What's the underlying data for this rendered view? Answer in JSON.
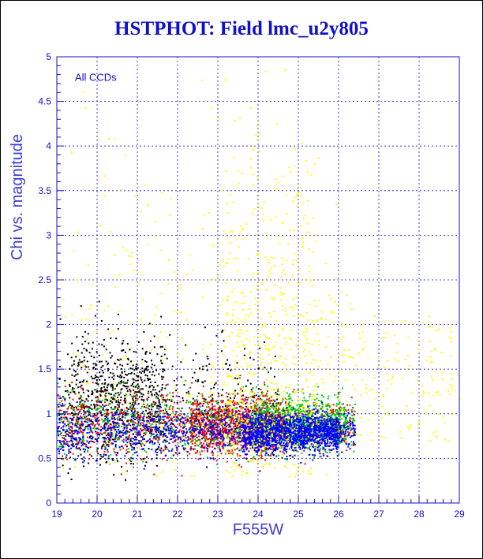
{
  "chart_data": {
    "type": "scatter",
    "title": "HSTPHOT: Field lmc_u2y805",
    "xlabel": "F555W",
    "ylabel": "Chi vs. magnitude",
    "annotation": "All CCDs",
    "xlim": [
      19,
      29
    ],
    "ylim": [
      0,
      5
    ],
    "x_ticks": [
      19,
      20,
      21,
      22,
      23,
      24,
      25,
      26,
      27,
      28,
      29
    ],
    "y_ticks": [
      0,
      0.5,
      1,
      1.5,
      2,
      2.5,
      3,
      3.5,
      4,
      4.5,
      5
    ],
    "grid": true,
    "legend": "none",
    "series": [
      {
        "color": "#000000",
        "x_range": [
          19,
          24.5
        ],
        "peak_x": 20.5,
        "y_center": 1.15,
        "y_spread": 0.3,
        "approx_count": 1100
      },
      {
        "color": "#ff0000",
        "x_range": [
          19,
          26.4
        ],
        "peak_x": 23.5,
        "y_center": 0.88,
        "y_spread": 0.16,
        "approx_count": 1800
      },
      {
        "color": "#00cc00",
        "x_range": [
          19,
          26.4
        ],
        "peak_x": 25.0,
        "y_center": 0.9,
        "y_spread": 0.16,
        "approx_count": 1400
      },
      {
        "color": "#0000ff",
        "x_range": [
          19,
          26.4
        ],
        "peak_x": 24.8,
        "y_center": 0.8,
        "y_spread": 0.12,
        "approx_count": 2300
      },
      {
        "color": "#ffff00",
        "x_range": [
          19,
          29
        ],
        "peak_x": 24.3,
        "y_center": 1.6,
        "y_spread": 1.2,
        "approx_count": 1100
      }
    ]
  }
}
